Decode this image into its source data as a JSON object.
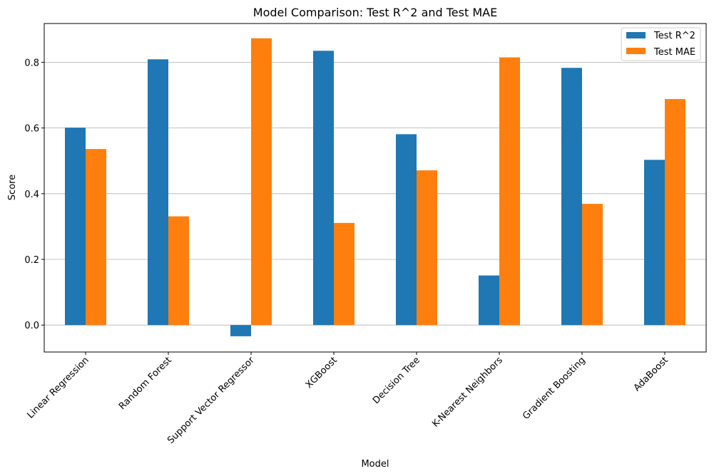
{
  "chart_data": {
    "type": "bar",
    "title": "Model Comparison: Test R^2 and Test MAE",
    "xlabel": "Model",
    "ylabel": "Score",
    "categories": [
      "Linear Regression",
      "Random Forest",
      "Support Vector Regressor",
      "XGBoost",
      "Decision Tree",
      "K-Nearest Neighbors",
      "Gradient Boosting",
      "AdaBoost"
    ],
    "series": [
      {
        "name": "Test R^2",
        "color": "#1f77b4",
        "values": [
          0.601,
          0.809,
          -0.034,
          0.835,
          0.581,
          0.151,
          0.783,
          0.503
        ]
      },
      {
        "name": "Test MAE",
        "color": "#ff7f0e",
        "values": [
          0.536,
          0.331,
          0.873,
          0.311,
          0.471,
          0.815,
          0.369,
          0.688
        ]
      }
    ],
    "ylim": [
      -0.082,
      0.918
    ],
    "yticks": [
      0.0,
      0.2,
      0.4,
      0.6,
      0.8
    ],
    "ytick_labels": [
      "0.0",
      "0.2",
      "0.4",
      "0.6",
      "0.8"
    ],
    "grid": "y",
    "legend_position": "top-right"
  }
}
